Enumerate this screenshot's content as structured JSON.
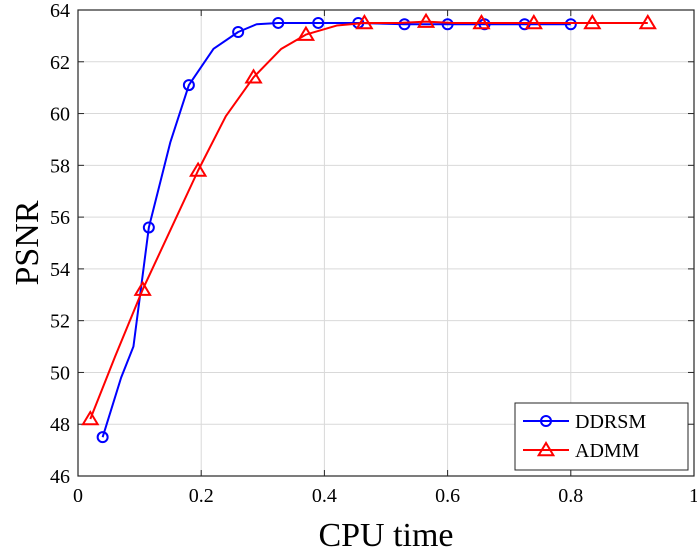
{
  "chart_data": {
    "type": "line",
    "title": "",
    "xlabel": "CPU time",
    "ylabel": "PSNR",
    "xlim": [
      0,
      1
    ],
    "ylim": [
      46,
      64
    ],
    "xticks": [
      0,
      0.2,
      0.4,
      0.6,
      0.8,
      1
    ],
    "xtick_labels": [
      "0",
      "0.2",
      "0.4",
      "0.6",
      "0.8",
      "1"
    ],
    "yticks": [
      46,
      48,
      50,
      52,
      54,
      56,
      58,
      60,
      62,
      64
    ],
    "ytick_labels": [
      "46",
      "48",
      "50",
      "52",
      "54",
      "56",
      "58",
      "60",
      "62",
      "64"
    ],
    "grid": true,
    "legend_position": "bottom-right",
    "series": [
      {
        "name": "DDRSM",
        "color": "#0000ff",
        "marker": "circle",
        "x": [
          0.04,
          0.07,
          0.09,
          0.115,
          0.15,
          0.18,
          0.22,
          0.26,
          0.29,
          0.325,
          0.39,
          0.455,
          0.53,
          0.6,
          0.66,
          0.725,
          0.8
        ],
        "y": [
          47.5,
          49.8,
          51.0,
          55.6,
          58.9,
          61.1,
          62.5,
          63.15,
          63.45,
          63.5,
          63.5,
          63.5,
          63.45,
          63.45,
          63.45,
          63.45,
          63.45
        ],
        "marker_x": [
          0.04,
          0.115,
          0.18,
          0.26,
          0.325,
          0.39,
          0.455,
          0.53,
          0.6,
          0.66,
          0.725,
          0.8
        ],
        "marker_y": [
          47.5,
          55.6,
          61.1,
          63.15,
          63.5,
          63.5,
          63.5,
          63.45,
          63.45,
          63.45,
          63.45,
          63.45
        ]
      },
      {
        "name": "ADMM",
        "color": "#ff0000",
        "marker": "triangle",
        "x": [
          0.02,
          0.06,
          0.105,
          0.15,
          0.195,
          0.24,
          0.285,
          0.33,
          0.37,
          0.42,
          0.465,
          0.52,
          0.565,
          0.61,
          0.655,
          0.7,
          0.74,
          0.79,
          0.835,
          0.88,
          0.925
        ],
        "y": [
          48.2,
          50.6,
          53.2,
          55.5,
          57.8,
          59.9,
          61.4,
          62.5,
          63.05,
          63.4,
          63.5,
          63.5,
          63.55,
          63.5,
          63.5,
          63.5,
          63.5,
          63.5,
          63.5,
          63.5,
          63.5
        ],
        "marker_x": [
          0.02,
          0.105,
          0.195,
          0.285,
          0.37,
          0.465,
          0.565,
          0.655,
          0.74,
          0.835,
          0.925
        ],
        "marker_y": [
          48.2,
          53.2,
          57.8,
          61.4,
          63.05,
          63.5,
          63.55,
          63.5,
          63.5,
          63.5,
          63.5
        ]
      }
    ]
  }
}
